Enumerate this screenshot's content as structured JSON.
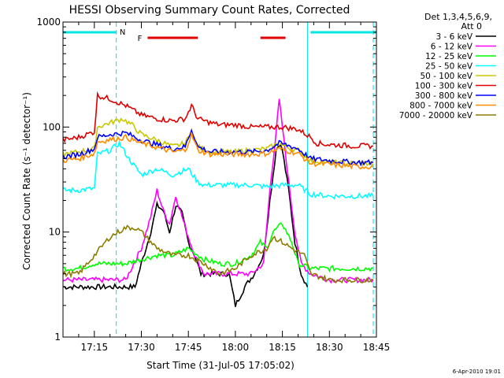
{
  "chart_data": {
    "type": "line",
    "title": "HESSI Observing Summary Count Rates, Corrected",
    "ylabel": "Corrected Count Rate (s⁻¹ detector⁻¹)",
    "xlabel": "Start Time (31-Jul-05 17:05:02)",
    "y_scale": "log",
    "ylim": [
      1,
      1000
    ],
    "xlim": [
      "17:05",
      "18:45"
    ],
    "x_ticks": [
      "17:15",
      "17:30",
      "17:45",
      "18:00",
      "18:15",
      "18:30",
      "18:45"
    ],
    "y_ticks": [
      "1",
      "10",
      "100",
      "1000"
    ],
    "legend_title": [
      "Det 1,3,4,5,6,9,",
      "Att 0"
    ],
    "legend_position": "right",
    "footer": "6-Apr-2010 19:01",
    "flags": [
      {
        "label": "N",
        "color": "#00e5e5",
        "segments": [
          [
            "17:05",
            "17:22"
          ],
          [
            "18:24",
            "18:45"
          ]
        ]
      },
      {
        "label": "F",
        "color": "#e00000",
        "segments": [
          [
            "17:32",
            "17:48"
          ],
          [
            "18:08",
            "18:16"
          ]
        ]
      }
    ],
    "vertical_markers": [
      {
        "time": "17:05",
        "style": "solid",
        "color": "#00e5e5"
      },
      {
        "time": "17:22",
        "style": "dashed",
        "color": "#00e5e5"
      },
      {
        "time": "18:23",
        "style": "solid",
        "color": "#00e5e5"
      },
      {
        "time": "18:44",
        "style": "dashed",
        "color": "#00e5e5"
      }
    ],
    "series": [
      {
        "name": "3 - 6 keV",
        "color": "#000000",
        "x": [
          "17:05",
          "17:15",
          "17:20",
          "17:22",
          "17:25",
          "17:28",
          "17:30",
          "17:33",
          "17:35",
          "17:37",
          "17:39",
          "17:41",
          "17:43",
          "17:45",
          "17:47",
          "17:49",
          "17:52",
          "17:55",
          "17:58",
          "18:00",
          "18:03",
          "18:06",
          "18:09",
          "18:11",
          "18:13",
          "18:14",
          "18:15",
          "18:17",
          "18:19",
          "18:21",
          "18:23"
        ],
        "y": [
          3,
          3,
          3,
          3,
          3,
          3,
          5,
          10,
          18,
          16,
          10,
          18,
          15,
          8,
          6,
          4,
          4,
          4,
          4,
          2,
          3,
          4,
          6,
          20,
          60,
          70,
          60,
          25,
          8,
          4,
          3
        ]
      },
      {
        "name": "6 - 12 keV",
        "color": "#ff00ff",
        "x": [
          "17:05",
          "17:15",
          "17:20",
          "17:25",
          "17:30",
          "17:33",
          "17:35",
          "17:37",
          "17:39",
          "17:41",
          "17:43",
          "17:45",
          "17:47",
          "17:50",
          "17:55",
          "18:00",
          "18:05",
          "18:09",
          "18:11",
          "18:13",
          "18:14",
          "18:15",
          "18:17",
          "18:19",
          "18:21",
          "18:24",
          "18:30",
          "18:38",
          "18:44"
        ],
        "y": [
          3.5,
          3.5,
          3.5,
          3.5,
          7,
          14,
          25,
          16,
          12,
          22,
          14,
          9,
          6,
          4,
          4,
          4,
          4,
          5,
          25,
          90,
          180,
          100,
          30,
          10,
          5,
          4,
          3.5,
          3.5,
          3.5
        ]
      },
      {
        "name": "12 - 25 keV",
        "color": "#00ff00",
        "x": [
          "17:05",
          "17:10",
          "17:15",
          "17:20",
          "17:25",
          "17:30",
          "17:35",
          "17:40",
          "17:45",
          "17:50",
          "17:55",
          "18:00",
          "18:05",
          "18:08",
          "18:10",
          "18:12",
          "18:15",
          "18:18",
          "18:20",
          "18:24",
          "18:30",
          "18:38",
          "18:44"
        ],
        "y": [
          4.5,
          4.5,
          5,
          5,
          5,
          5.5,
          6,
          6,
          7,
          5.5,
          5,
          5,
          6,
          8,
          7,
          10,
          12,
          8,
          5,
          4.5,
          4.5,
          4.5,
          4.5
        ]
      },
      {
        "name": "25 - 50 keV",
        "color": "#00ffff",
        "x": [
          "17:05",
          "17:10",
          "17:15",
          "17:16",
          "17:20",
          "17:23",
          "17:26",
          "17:30",
          "17:35",
          "17:40",
          "17:45",
          "17:48",
          "17:50",
          "17:55",
          "18:00",
          "18:05",
          "18:10",
          "18:15",
          "18:20",
          "18:24",
          "18:30",
          "18:38",
          "18:44"
        ],
        "y": [
          25,
          25,
          26,
          55,
          60,
          70,
          50,
          35,
          40,
          35,
          40,
          30,
          28,
          28,
          28,
          28,
          27,
          28,
          28,
          23,
          22,
          22,
          22
        ]
      },
      {
        "name": "50 - 100 keV",
        "color": "#c8c800",
        "x": [
          "17:05",
          "17:10",
          "17:15",
          "17:16",
          "17:20",
          "17:24",
          "17:27",
          "17:30",
          "17:35",
          "17:40",
          "17:44",
          "17:46",
          "17:48",
          "17:52",
          "17:55",
          "18:00",
          "18:05",
          "18:10",
          "18:14",
          "18:16",
          "18:20",
          "18:24",
          "18:30",
          "18:38",
          "18:44"
        ],
        "y": [
          55,
          58,
          62,
          100,
          110,
          120,
          105,
          85,
          75,
          65,
          70,
          90,
          65,
          58,
          58,
          58,
          60,
          62,
          70,
          65,
          60,
          48,
          46,
          45,
          45
        ]
      },
      {
        "name": "100 - 300 keV",
        "color": "#e00000",
        "x": [
          "17:05",
          "17:10",
          "17:15",
          "17:16",
          "17:20",
          "17:25",
          "17:30",
          "17:35",
          "17:40",
          "17:44",
          "17:46",
          "17:48",
          "17:52",
          "17:55",
          "18:00",
          "18:05",
          "18:10",
          "18:15",
          "18:20",
          "18:24",
          "18:26",
          "18:30",
          "18:38",
          "18:44"
        ],
        "y": [
          75,
          80,
          90,
          200,
          185,
          160,
          130,
          120,
          115,
          120,
          160,
          120,
          110,
          105,
          105,
          100,
          100,
          100,
          95,
          80,
          70,
          68,
          66,
          66
        ]
      },
      {
        "name": "300 - 800 keV",
        "color": "#0000ff",
        "x": [
          "17:05",
          "17:10",
          "17:15",
          "17:16",
          "17:20",
          "17:25",
          "17:30",
          "17:35",
          "17:40",
          "17:44",
          "17:46",
          "17:48",
          "17:52",
          "17:55",
          "18:00",
          "18:05",
          "18:10",
          "18:14",
          "18:16",
          "18:20",
          "18:24",
          "18:30",
          "18:38",
          "18:44"
        ],
        "y": [
          52,
          55,
          62,
          80,
          85,
          88,
          75,
          68,
          62,
          65,
          95,
          65,
          58,
          58,
          58,
          58,
          60,
          70,
          68,
          62,
          50,
          48,
          46,
          46
        ]
      },
      {
        "name": "800 - 7000 keV",
        "color": "#ff8c00",
        "x": [
          "17:05",
          "17:10",
          "17:15",
          "17:16",
          "17:20",
          "17:25",
          "17:30",
          "17:35",
          "17:40",
          "17:44",
          "17:46",
          "17:48",
          "17:52",
          "17:55",
          "18:00",
          "18:05",
          "18:10",
          "18:14",
          "18:16",
          "18:20",
          "18:24",
          "18:30",
          "18:38",
          "18:44"
        ],
        "y": [
          48,
          50,
          56,
          72,
          76,
          80,
          70,
          64,
          58,
          60,
          85,
          60,
          55,
          55,
          55,
          55,
          56,
          62,
          60,
          56,
          45,
          44,
          42,
          42
        ]
      },
      {
        "name": "7000 - 20000 keV",
        "color": "#8b7d00",
        "x": [
          "17:05",
          "17:10",
          "17:15",
          "17:20",
          "17:25",
          "17:28",
          "17:30",
          "17:35",
          "17:40",
          "17:45",
          "17:50",
          "17:55",
          "18:00",
          "18:05",
          "18:10",
          "18:12",
          "18:15",
          "18:18",
          "18:22",
          "18:24",
          "18:30",
          "18:38",
          "18:44"
        ],
        "y": [
          4,
          4,
          6,
          9,
          11,
          11,
          10,
          7,
          6,
          6,
          5,
          4,
          4.5,
          6,
          7,
          9,
          8,
          7,
          6,
          4,
          3.5,
          3.5,
          3.5
        ]
      }
    ]
  }
}
